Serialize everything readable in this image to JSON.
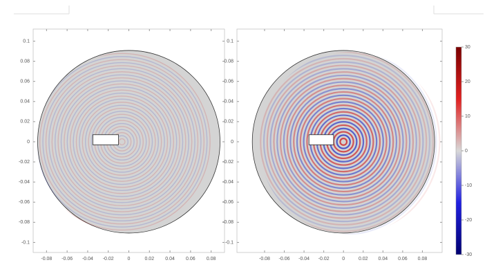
{
  "chart_data": [
    {
      "type": "field",
      "xlim": [
        -0.093,
        0.093
      ],
      "ylim": [
        -0.11,
        0.112
      ],
      "xticks": [
        -0.08,
        -0.06,
        -0.04,
        -0.02,
        0,
        0.02,
        0.04,
        0.06,
        0.08
      ],
      "yticks": [
        0.1,
        0.08,
        0.06,
        0.04,
        0.02,
        0,
        -0.02,
        -0.04,
        -0.06,
        -0.08,
        -0.1
      ]
    },
    {
      "type": "field",
      "xlim": [
        -0.108,
        0.1
      ],
      "ylim": [
        -0.11,
        0.112
      ],
      "xticks": [
        -0.08,
        -0.06,
        -0.04,
        -0.02,
        0,
        0.02,
        0.04,
        0.06,
        0.08
      ],
      "yticks": [
        0.1,
        0.08,
        0.06,
        0.04,
        0.02,
        0,
        -0.02,
        -0.04,
        -0.06,
        -0.08,
        -0.1
      ],
      "colorbar_lim": [
        -30,
        30
      ],
      "colorbar_ticks": [
        30,
        20,
        10,
        0,
        -10,
        -20,
        -30
      ]
    }
  ]
}
